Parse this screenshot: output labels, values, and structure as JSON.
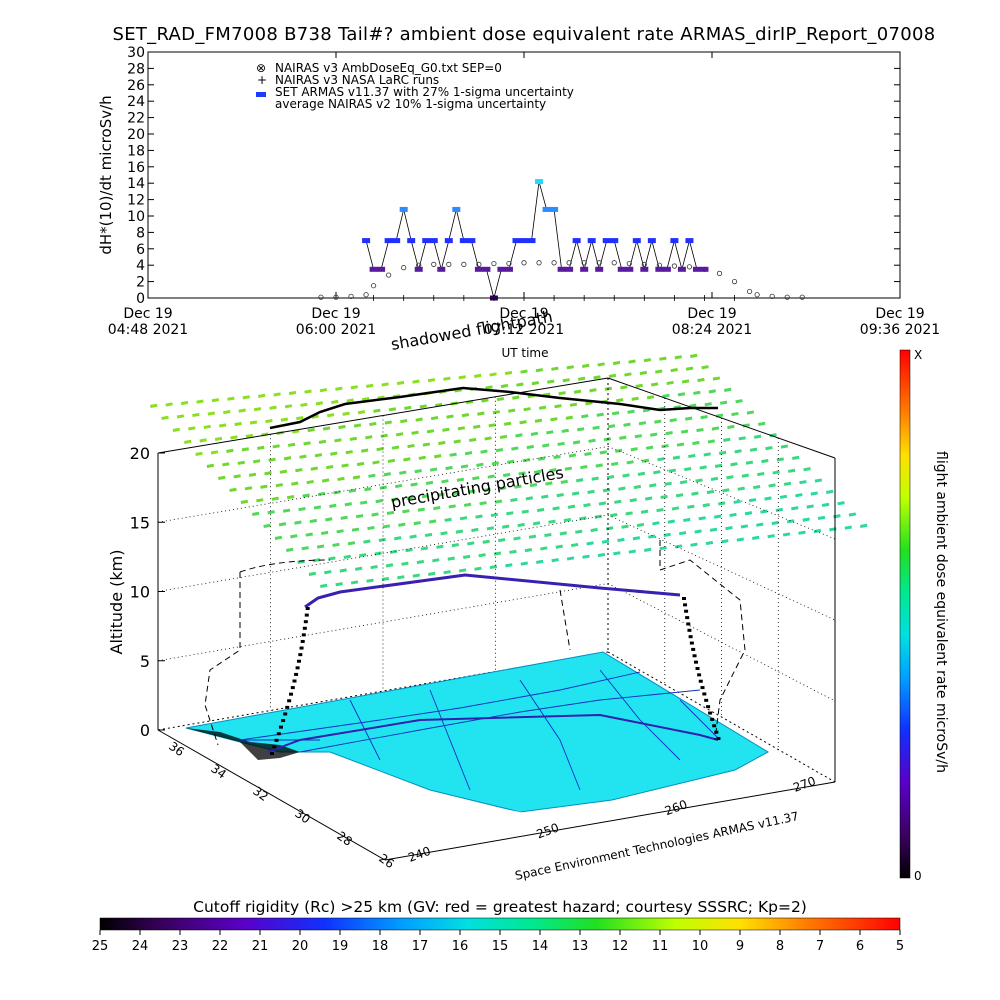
{
  "title": "SET_RAD_FM7008  B738 Tail#? ambient dose equivalent rate ARMAS_dirIP_Report_07008",
  "chart_data": [
    {
      "type": "scatter",
      "ylabel": "dH*(10)/dt microSv/h",
      "xlabel": "UT time",
      "ylim": [
        0,
        30
      ],
      "yticks": [
        "0",
        "2",
        "4",
        "6",
        "8",
        "10",
        "12",
        "14",
        "16",
        "18",
        "20",
        "22",
        "24",
        "26",
        "28",
        "30"
      ],
      "xticks": [
        {
          "line1": "Dec 19",
          "line2": "04:48 2021"
        },
        {
          "line1": "Dec 19",
          "line2": "06:00 2021"
        },
        {
          "line1": "Dec 19",
          "line2": "07:12 2021"
        },
        {
          "line1": "Dec 19",
          "line2": "08:24 2021"
        },
        {
          "line1": "Dec 19",
          "line2": "09:36 2021"
        }
      ],
      "legend": [
        {
          "symbol": "⊗",
          "label": "NAIRAS v3 AmbDoseEq_G0.txt SEP=0"
        },
        {
          "symbol": "+",
          "label": "NAIRAS v3 NASA LaRC runs"
        },
        {
          "symbol": "▬",
          "label": "SET ARMAS v11.37 with 27% 1-sigma uncertainty",
          "color": "#1a3cff"
        },
        {
          "symbol": "",
          "label": "average NAIRAS v2 10% 1-sigma uncertainty"
        }
      ],
      "series": [
        {
          "marker": "circle",
          "x": [
            0.23,
            0.25,
            0.27,
            0.29,
            0.3,
            0.32,
            0.34,
            0.36,
            0.38,
            0.4,
            0.42,
            0.44,
            0.46,
            0.48,
            0.5,
            0.52,
            0.54,
            0.56,
            0.58,
            0.6,
            0.62,
            0.64,
            0.66,
            0.68,
            0.7,
            0.72,
            0.74,
            0.76,
            0.78,
            0.8,
            0.81,
            0.83,
            0.85,
            0.87
          ],
          "y": [
            0.1,
            0.1,
            0.2,
            0.4,
            1.5,
            2.8,
            3.7,
            4.0,
            4.1,
            4.1,
            4.1,
            4.1,
            4.2,
            4.2,
            4.3,
            4.3,
            4.3,
            4.3,
            4.3,
            4.3,
            4.3,
            4.2,
            4.1,
            4.0,
            3.9,
            3.8,
            3.5,
            3.0,
            2.0,
            0.8,
            0.4,
            0.2,
            0.1,
            0.1
          ]
        },
        {
          "marker": "plus",
          "x": [
            0.3,
            0.34,
            0.38,
            0.42,
            0.46,
            0.5,
            0.54,
            0.58,
            0.62,
            0.66,
            0.7,
            0.74,
            0.78
          ],
          "y": [
            0.0,
            0.0,
            0.0,
            0.0,
            0.0,
            0.0,
            0.0,
            0.0,
            0.0,
            0.0,
            0.0,
            0.0,
            0.0
          ]
        },
        {
          "marker": "dash",
          "x": [
            0.29,
            0.3,
            0.31,
            0.32,
            0.33,
            0.34,
            0.35,
            0.36,
            0.37,
            0.38,
            0.39,
            0.4,
            0.41,
            0.42,
            0.43,
            0.44,
            0.45,
            0.46,
            0.47,
            0.48,
            0.49,
            0.5,
            0.51,
            0.52,
            0.53,
            0.54,
            0.55,
            0.56,
            0.57,
            0.58,
            0.59,
            0.6,
            0.61,
            0.62,
            0.63,
            0.64,
            0.65,
            0.66,
            0.67,
            0.68,
            0.69,
            0.7,
            0.71,
            0.72,
            0.73,
            0.74
          ],
          "y": [
            7,
            3.5,
            3.5,
            7,
            7,
            10.8,
            7,
            3.5,
            7,
            7,
            3.5,
            7,
            10.8,
            7,
            7,
            3.5,
            3.5,
            0,
            3.5,
            3.5,
            7,
            7,
            7,
            14.2,
            10.8,
            10.8,
            3.5,
            3.5,
            7,
            3.5,
            7,
            3.5,
            7,
            7,
            3.5,
            3.5,
            7,
            3.5,
            7,
            3.5,
            3.5,
            7,
            3.5,
            7,
            3.5,
            3.5
          ]
        }
      ]
    },
    {
      "type": "scatter",
      "title": "shadowed flightpath",
      "zlabel": "Altitude (km)",
      "zticks": [
        "0",
        "5",
        "10",
        "15",
        "20"
      ],
      "lat_ticks": [
        "36",
        "34",
        "32",
        "30",
        "28",
        "26"
      ],
      "lon_ticks": [
        "240",
        "250",
        "260",
        "270"
      ],
      "annotation": "precipitating particles",
      "credit": "Space Environment Technologies ARMAS v11.37",
      "colorbar_label": "flight ambient dose equivalent rate microSv/h",
      "colorbar_top": "X",
      "colorbar_bottom": "0"
    },
    {
      "type": "heatmap",
      "title": "Cutoff rigidity (Rc) >25 km (GV: red = greatest hazard; courtesy SSSRC; Kp=2)",
      "ticks": [
        "25",
        "24",
        "23",
        "22",
        "21",
        "20",
        "19",
        "18",
        "17",
        "16",
        "15",
        "14",
        "13",
        "12",
        "11",
        "10",
        "9",
        "8",
        "7",
        "6",
        "5"
      ]
    }
  ]
}
